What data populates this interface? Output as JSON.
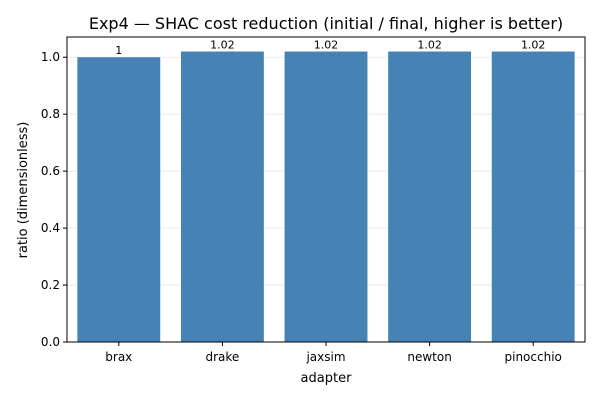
{
  "chart_data": {
    "type": "bar",
    "title": "Exp4 — SHAC cost reduction (initial / final, higher is better)",
    "xlabel": "adapter",
    "ylabel": "ratio (dimensionless)",
    "categories": [
      "brax",
      "drake",
      "jaxsim",
      "newton",
      "pinocchio"
    ],
    "values": [
      1.0,
      1.02,
      1.02,
      1.02,
      1.02
    ],
    "data_labels": [
      "1",
      "1.02",
      "1.02",
      "1.02",
      "1.02"
    ],
    "ylim": [
      0,
      1.071
    ],
    "yticks": [
      0.0,
      0.2,
      0.4,
      0.6,
      0.8,
      1.0
    ],
    "ytick_labels": [
      "0.0",
      "0.2",
      "0.4",
      "0.6",
      "0.8",
      "1.0"
    ],
    "grid": "y",
    "legend": "none",
    "bar_color": "#4682b4"
  }
}
